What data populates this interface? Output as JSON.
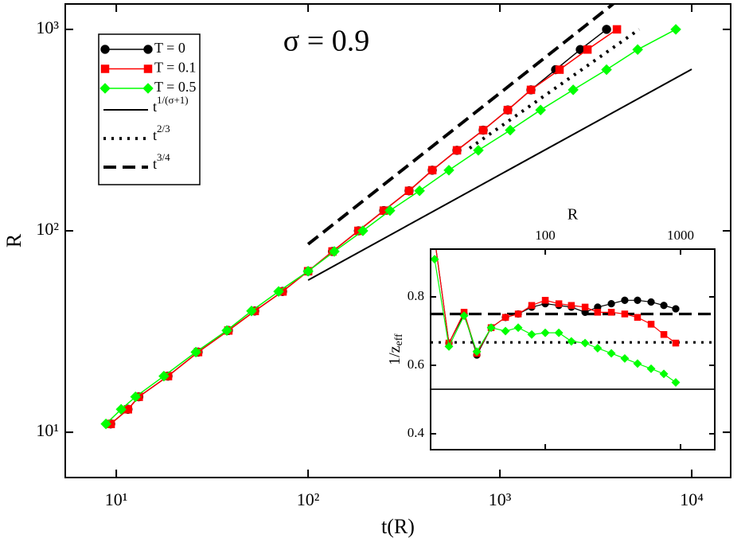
{
  "chart_data": [
    {
      "type": "line",
      "xlabel": "t(R)",
      "ylabel": "R",
      "annotation": "σ = 0.9",
      "xscale": "log",
      "yscale": "log",
      "xlim": [
        5.42,
        15960
      ],
      "ylim": [
        5.96,
        1337
      ],
      "xticks": [
        {
          "value": 10,
          "label": "10¹"
        },
        {
          "value": 100,
          "label": "10²"
        },
        {
          "value": 1000,
          "label": "10³"
        },
        {
          "value": 10000,
          "label": "10⁴"
        }
      ],
      "yticks": [
        {
          "value": 10,
          "label": "10¹"
        },
        {
          "value": 100,
          "label": "10²"
        },
        {
          "value": 1000,
          "label": "10³"
        }
      ],
      "legend": "upper left",
      "series": [
        {
          "name": "T = 0",
          "color": "#000000",
          "marker": "circle",
          "x": [
            9.35,
            11.5,
            13.1,
            18.6,
            26.7,
            38.4,
            52.7,
            73.6,
            100,
            134,
            183,
            248,
            336,
            444,
            597,
            818,
            1099,
            1451,
            1951,
            2624,
            3597
          ],
          "values": [
            11,
            13,
            15,
            19,
            25,
            32,
            40,
            50,
            63,
            79,
            100,
            126,
            158,
            200,
            251,
            316,
            398,
            501,
            631,
            794,
            1000
          ]
        },
        {
          "name": "T = 0.1",
          "color": "#ff0000",
          "marker": "square",
          "x": [
            9.35,
            11.5,
            13.1,
            18.6,
            26.7,
            38.4,
            52.7,
            73.6,
            100,
            134,
            183,
            248,
            336,
            444,
            597,
            818,
            1099,
            1451,
            2046,
            2860,
            4074
          ],
          "values": [
            11,
            13,
            15,
            19,
            25,
            32,
            40,
            50,
            63,
            79,
            100,
            126,
            158,
            200,
            251,
            316,
            398,
            501,
            631,
            794,
            1000
          ]
        },
        {
          "name": "T = 0.5",
          "color": "#00ff00",
          "marker": "diamond",
          "x": [
            8.83,
            10.6,
            12.6,
            17.7,
            26.0,
            37.7,
            50.7,
            70.2,
            100,
            137,
            193,
            267,
            381,
            542,
            772,
            1132,
            1629,
            2410,
            3597,
            5224,
            8260
          ],
          "values": [
            11,
            13,
            15,
            19,
            25,
            32,
            40,
            50,
            63,
            79,
            100,
            126,
            158,
            200,
            251,
            316,
            398,
            501,
            631,
            794,
            1000
          ]
        },
        {
          "name": "t1/(σ+1)",
          "color": "#000000",
          "dash": "solid",
          "x": [
            100,
            10000
          ],
          "values": [
            56.9,
            634
          ]
        },
        {
          "name": "t2/3",
          "color": "#000000",
          "dash": "dotted",
          "x": [
            695,
            5321
          ],
          "values": [
            257,
            1000
          ]
        },
        {
          "name": "t3/4",
          "color": "#000000",
          "dash": "dashed",
          "x": [
            100,
            3900
          ],
          "values": [
            85.8,
            1340
          ]
        }
      ]
    },
    {
      "type": "line",
      "xlabel": "R",
      "ylabel": "1/zeff",
      "xscale": "log",
      "yscale": "linear",
      "xtick_side": "top",
      "xlim": [
        14.2,
        1791
      ],
      "ylim": [
        0.3535,
        0.9395
      ],
      "xticks": [
        100,
        1000
      ],
      "yticks": [
        0.4,
        0.6,
        0.8
      ],
      "x": [
        15.2,
        19.4,
        25.1,
        31.2,
        39.8,
        50.8,
        63.1,
        79.4,
        100,
        126,
        156,
        197,
        244,
        308,
        387,
        481,
        606,
        753,
        922
      ],
      "series": [
        {
          "color": "#000000",
          "marker": "circle",
          "values": [
            0.97,
            0.665,
            0.75,
            0.63,
            0.71,
            0.74,
            0.75,
            0.77,
            0.78,
            0.775,
            0.77,
            0.755,
            0.77,
            0.78,
            0.79,
            0.79,
            0.785,
            0.775,
            0.765
          ]
        },
        {
          "color": "#ff0000",
          "marker": "square",
          "values": [
            0.97,
            0.665,
            0.755,
            0.635,
            0.71,
            0.74,
            0.75,
            0.775,
            0.79,
            0.78,
            0.775,
            0.77,
            0.755,
            0.755,
            0.75,
            0.74,
            0.72,
            0.69,
            0.665
          ]
        },
        {
          "color": "#00ff00",
          "marker": "diamond",
          "values": [
            0.91,
            0.655,
            0.745,
            0.64,
            0.71,
            0.7,
            0.71,
            0.69,
            0.695,
            0.695,
            0.67,
            0.665,
            0.65,
            0.635,
            0.62,
            0.605,
            0.59,
            0.575,
            0.55
          ]
        }
      ],
      "hlines": [
        {
          "value": 0.53,
          "dash": "solid",
          "color": "#000000"
        },
        {
          "value": 0.667,
          "dash": "dotted",
          "color": "#000000"
        },
        {
          "value": 0.75,
          "dash": "dashed",
          "color": "#000000"
        }
      ]
    }
  ]
}
